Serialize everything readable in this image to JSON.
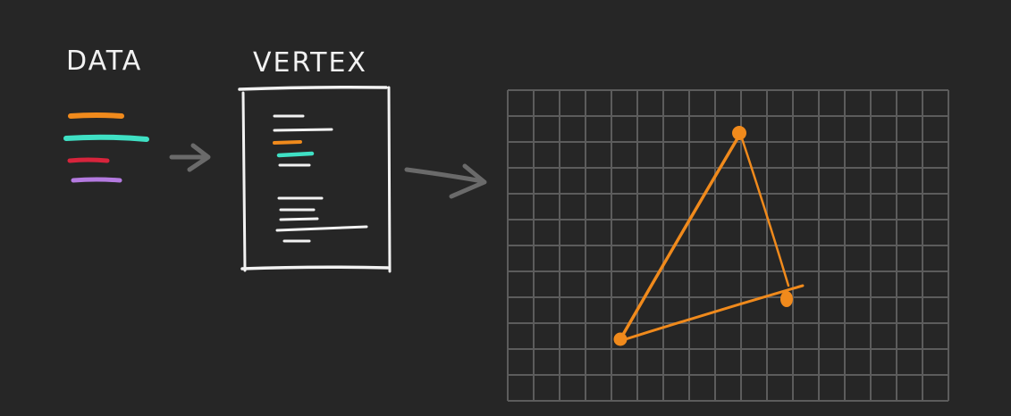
{
  "labels": {
    "data": "DATA",
    "vertex": "VERTEX"
  },
  "colors": {
    "background": "#262626",
    "ink": "#f2f2f2",
    "arrow": "#6a6a6a",
    "grid": "#5c5c5c",
    "orange": "#f08a1c",
    "teal": "#3fe0c4",
    "red": "#d8243c",
    "purple": "#b47ae0"
  },
  "icons": {
    "data_to_vertex_arrow": "arrow-right-icon",
    "vertex_to_grid_arrow": "arrow-right-icon"
  }
}
